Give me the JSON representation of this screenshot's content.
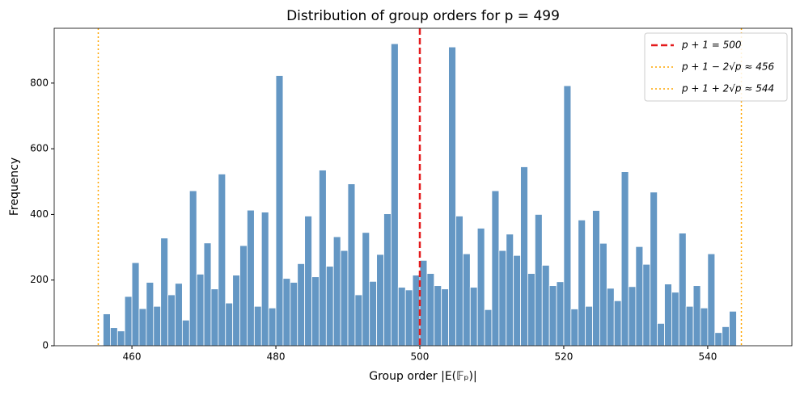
{
  "chart_data": {
    "type": "histogram",
    "title": "Distribution of group orders for p = 499",
    "xlabel": "Group order |E(𝔽ₚ)|",
    "ylabel": "Frequency",
    "bins": [
      456,
      457,
      458,
      459,
      460,
      461,
      462,
      463,
      464,
      465,
      466,
      467,
      468,
      469,
      470,
      471,
      472,
      473,
      474,
      475,
      476,
      477,
      478,
      479,
      480,
      481,
      482,
      483,
      484,
      485,
      486,
      487,
      488,
      489,
      490,
      491,
      492,
      493,
      494,
      495,
      496,
      497,
      498,
      499,
      500,
      501,
      502,
      503,
      504,
      505,
      506,
      507,
      508,
      509,
      510,
      511,
      512,
      513,
      514,
      515,
      516,
      517,
      518,
      519,
      520,
      521,
      522,
      523,
      524,
      525,
      526,
      527,
      528,
      529,
      530,
      531,
      532,
      533,
      534,
      535,
      536,
      537,
      538,
      539,
      540,
      541,
      542,
      543,
      544
    ],
    "values": [
      97,
      55,
      45,
      150,
      253,
      113,
      193,
      120,
      328,
      155,
      190,
      78,
      472,
      218,
      313,
      173,
      523,
      130,
      215,
      305,
      413,
      120,
      407,
      115,
      823,
      205,
      193,
      250,
      395,
      210,
      535,
      242,
      332,
      290,
      493,
      155,
      345,
      196,
      278,
      402,
      920,
      178,
      170,
      215,
      260,
      220,
      183,
      173,
      910,
      395,
      280,
      178,
      358,
      110,
      472,
      290,
      340,
      275,
      545,
      220,
      400,
      245,
      183,
      195,
      792,
      112,
      383,
      120,
      412,
      312,
      175,
      137,
      530,
      180,
      302,
      248,
      468,
      68,
      188,
      163,
      343,
      120,
      183,
      115,
      280,
      40,
      58,
      105
    ],
    "color": "#6497c4",
    "xlim": [
      449.2,
      551.7
    ],
    "ylim": [
      0,
      967
    ],
    "xticks": [
      460,
      480,
      500,
      520,
      540
    ],
    "yticks": [
      0,
      200,
      400,
      600,
      800
    ],
    "vlines": [
      {
        "value": 500,
        "label": "p + 1 = 500",
        "color": "#e41a1c",
        "style": "dashed"
      },
      {
        "value": 455.32,
        "label": "p + 1 − 2√p ≈ 456",
        "color": "#ffa500",
        "style": "dotted"
      },
      {
        "value": 544.68,
        "label": "p + 1 + 2√p ≈ 544",
        "color": "#ffa500",
        "style": "dotted"
      }
    ],
    "legend": "upper right"
  }
}
